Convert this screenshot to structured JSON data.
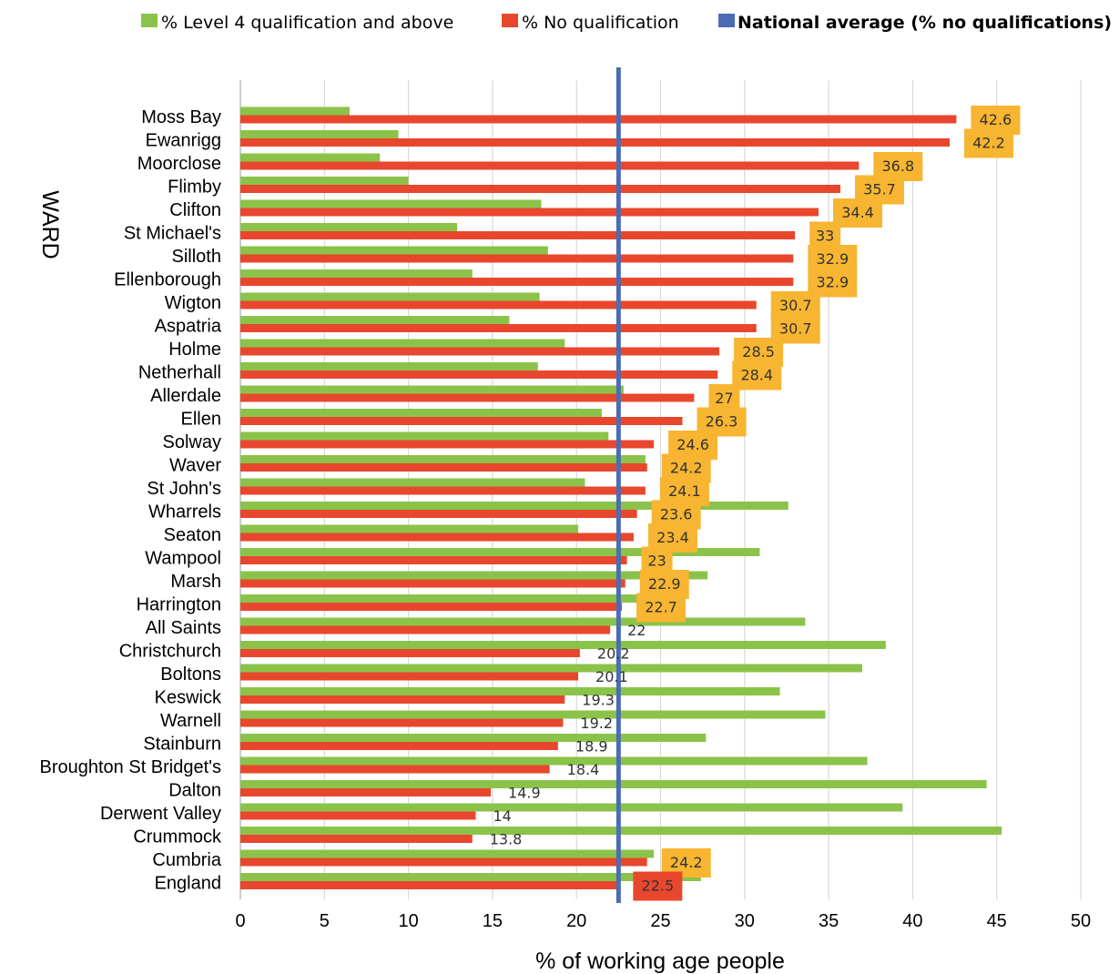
{
  "chart_data": {
    "type": "bar",
    "orientation": "horizontal",
    "title": "",
    "xlabel": "% of working age people",
    "ylabel": "WARD",
    "xlim": [
      0,
      50
    ],
    "xticks": [
      0,
      5,
      10,
      15,
      20,
      25,
      30,
      35,
      40,
      45,
      50
    ],
    "grid": "vertical",
    "legend_position": "top",
    "categories": [
      "Moss Bay",
      "Ewanrigg",
      "Moorclose",
      "Flimby",
      "Clifton",
      "St Michael's",
      "Silloth",
      "Ellenborough",
      "Wigton",
      "Aspatria",
      "Holme",
      "Netherhall",
      "Allerdale",
      "Ellen",
      "Solway",
      "Waver",
      "St John's",
      "Wharrels",
      "Seaton",
      "Wampool",
      "Marsh",
      "Harrington",
      "All Saints",
      "Christchurch",
      "Boltons",
      "Keswick",
      "Warnell",
      "Stainburn",
      "Broughton St Bridget's",
      "Dalton",
      "Derwent Valley",
      "Crummock",
      "Cumbria",
      "England"
    ],
    "series": [
      {
        "name": "% Level 4 qualification and above",
        "color": "#8bc34a",
        "values": [
          6.5,
          9.4,
          8.3,
          10.0,
          17.9,
          12.9,
          18.3,
          13.8,
          17.8,
          16.0,
          19.3,
          17.7,
          22.8,
          21.5,
          21.9,
          24.1,
          20.5,
          32.6,
          20.1,
          30.9,
          27.8,
          23.6,
          33.6,
          38.4,
          37.0,
          32.1,
          34.8,
          27.7,
          37.3,
          44.4,
          39.4,
          45.3,
          24.6,
          27.4
        ]
      },
      {
        "name": "% No qualification",
        "color": "#e8472d",
        "values": [
          42.6,
          42.2,
          36.8,
          35.7,
          34.4,
          33,
          32.9,
          32.9,
          30.7,
          30.7,
          28.5,
          28.4,
          27,
          26.3,
          24.6,
          24.2,
          24.1,
          23.6,
          23.4,
          23,
          22.9,
          22.7,
          22,
          20.2,
          20.1,
          19.3,
          19.2,
          18.9,
          18.4,
          14.9,
          14,
          13.8,
          24.2,
          22.5
        ],
        "labels": [
          "42.6",
          "42.2",
          "36.8",
          "35.7",
          "34.4",
          "33",
          "32.9",
          "32.9",
          "30.7",
          "30.7",
          "28.5",
          "28.4",
          "27",
          "26.3",
          "24.6",
          "24.2",
          "24.1",
          "23.6",
          "23.4",
          "23",
          "22.9",
          "22.7",
          "22",
          "20.2",
          "20.1",
          "19.3",
          "19.2",
          "18.9",
          "18.4",
          "14.9",
          "14",
          "13.8",
          "24.2",
          "22.5"
        ]
      }
    ],
    "reference_line": {
      "name": "National average (% no qualifications)",
      "value": 22.5,
      "color": "#4a6db5"
    },
    "label_highlight_color": "#f7b531",
    "england_highlight_color": "#e8472d"
  }
}
